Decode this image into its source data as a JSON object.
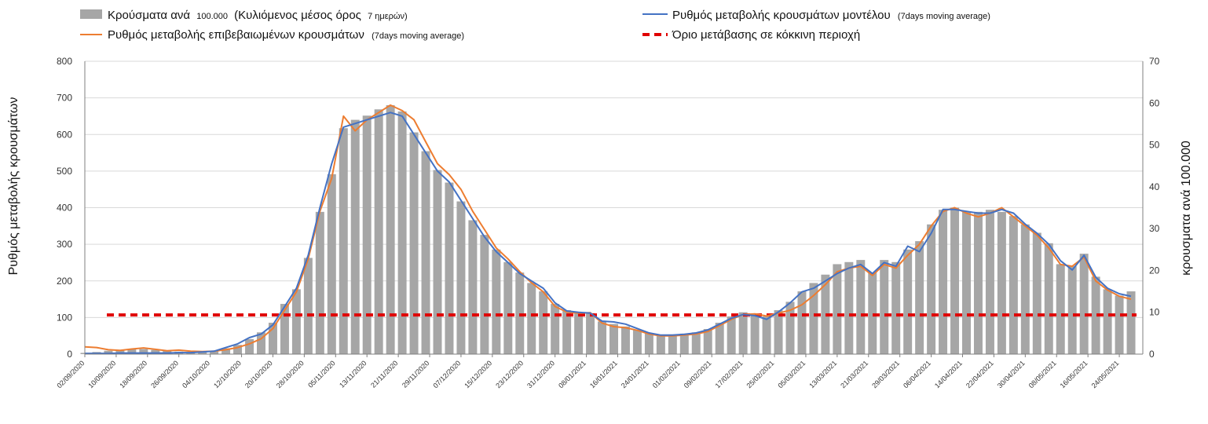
{
  "chart_data": {
    "type": "bar+line",
    "legend": {
      "bars_label": "Κρούσματα ανά",
      "bars_label_small": "100.000",
      "bars_label_rest": "(Κυλιόμενος μέσος όρος",
      "bars_label_small2": "7 ημερών)",
      "model_label": "Ρυθμός μεταβολής κρουσμάτων μοντέλου",
      "model_label_small": "(7days moving average)",
      "confirmed_label": "Ρυθμός μεταβολής επιβεβαιωμένων κρουσμάτων",
      "confirmed_label_small": "(7days moving average)",
      "threshold_label": "Όριο μετάβασης σε κόκκινη περιοχή"
    },
    "y_left": {
      "title": "Ρυθμός μεταβολής κρουσμάτων",
      "min": 0,
      "max": 800,
      "ticks": [
        "0",
        "100",
        "200",
        "300",
        "400",
        "500",
        "600",
        "700",
        "800"
      ]
    },
    "y_right": {
      "title": "κρουσματα ανά 100.000",
      "min": 0,
      "max": 70,
      "ticks": [
        "0",
        "10",
        "20",
        "30",
        "40",
        "50",
        "60",
        "70"
      ]
    },
    "x_tick_labels": [
      "02/09/2020",
      "10/09/2020",
      "18/09/2020",
      "26/09/2020",
      "04/10/2020",
      "12/10/2020",
      "20/10/2020",
      "28/10/2020",
      "05/11/2020",
      "13/11/2020",
      "21/11/2020",
      "29/11/2020",
      "07/12/2020",
      "15/12/2020",
      "23/12/2020",
      "31/12/2020",
      "08/01/2021",
      "16/01/2021",
      "24/01/2021",
      "01/02/2021",
      "09/02/2021",
      "17/02/2021",
      "25/02/2021",
      "05/03/2021",
      "13/03/2021",
      "21/03/2021",
      "29/03/2021",
      "06/04/2021",
      "14/04/2021",
      "22/04/2021",
      "30/04/2021",
      "08/05/2021",
      "16/05/2021",
      "24/05/2021"
    ],
    "threshold": 107,
    "series": [
      {
        "name": "Ρυθμός μεταβολής επιβεβαιωμένων κρουσμάτων (7days moving average)",
        "axis": "left",
        "color": "#ED7D31",
        "days": [
          0,
          3,
          6,
          9,
          12,
          15,
          18,
          21,
          24,
          27,
          30,
          33,
          36,
          39,
          42,
          45,
          48,
          51,
          54,
          57,
          60,
          63,
          66,
          69,
          72,
          75,
          78,
          81,
          84,
          87,
          90,
          93,
          96,
          99,
          102,
          105,
          108,
          111,
          114,
          117,
          120,
          123,
          126,
          129,
          132,
          135,
          138,
          141,
          144,
          147,
          150,
          153,
          156,
          159,
          162,
          165,
          168,
          171,
          174,
          177,
          180,
          183,
          186,
          189,
          192,
          195,
          198,
          201,
          204,
          207,
          210,
          213,
          216,
          219,
          222,
          225,
          228,
          231,
          234,
          237,
          240,
          243,
          246,
          249,
          252,
          255,
          258,
          261,
          264,
          267
        ],
        "values": [
          20,
          18,
          12,
          10,
          14,
          17,
          13,
          9,
          11,
          8,
          7,
          8,
          12,
          18,
          28,
          42,
          70,
          120,
          170,
          260,
          390,
          480,
          650,
          610,
          640,
          660,
          680,
          665,
          640,
          580,
          520,
          490,
          450,
          390,
          340,
          290,
          260,
          225,
          195,
          170,
          130,
          115,
          112,
          113,
          85,
          75,
          72,
          65,
          55,
          50,
          50,
          52,
          55,
          62,
          78,
          95,
          108,
          110,
          104,
          112,
          120,
          135,
          160,
          190,
          225,
          235,
          240,
          215,
          245,
          235,
          270,
          300,
          350,
          390,
          400,
          385,
          375,
          385,
          400,
          375,
          350,
          325,
          290,
          245,
          240,
          265,
          200,
          175,
          158,
          150
        ]
      },
      {
        "name": "Ρυθμός μεταβολής κρουσμάτων μοντέλου (7days moving average)",
        "axis": "left",
        "color": "#4472C4",
        "days": [
          0,
          3,
          6,
          9,
          12,
          15,
          18,
          21,
          24,
          27,
          30,
          33,
          36,
          39,
          42,
          45,
          48,
          51,
          54,
          57,
          60,
          63,
          66,
          69,
          72,
          75,
          78,
          81,
          84,
          87,
          90,
          93,
          96,
          99,
          102,
          105,
          108,
          111,
          114,
          117,
          120,
          123,
          126,
          129,
          132,
          135,
          138,
          141,
          144,
          147,
          150,
          153,
          156,
          159,
          162,
          165,
          168,
          171,
          174,
          177,
          180,
          183,
          186,
          189,
          192,
          195,
          198,
          201,
          204,
          207,
          210,
          213,
          216,
          219,
          222,
          225,
          228,
          231,
          234,
          237,
          240,
          243,
          246,
          249,
          252,
          255,
          258,
          261,
          264,
          267
        ],
        "values": [
          2,
          2,
          2,
          3,
          3,
          3,
          3,
          3,
          4,
          4,
          6,
          8,
          18,
          28,
          45,
          55,
          80,
          130,
          180,
          270,
          400,
          520,
          620,
          630,
          640,
          650,
          660,
          650,
          600,
          550,
          500,
          470,
          420,
          370,
          320,
          280,
          250,
          220,
          200,
          180,
          140,
          118,
          114,
          112,
          90,
          88,
          82,
          70,
          58,
          52,
          52,
          54,
          58,
          66,
          82,
          98,
          108,
          105,
          95,
          115,
          140,
          170,
          180,
          200,
          220,
          235,
          245,
          220,
          250,
          240,
          295,
          280,
          330,
          395,
          395,
          390,
          385,
          385,
          395,
          385,
          355,
          330,
          300,
          255,
          230,
          270,
          210,
          180,
          165,
          158
        ]
      },
      {
        "name": "Κρούσματα ανά 100.000 (Κυλιόμενος μέσος όρος 7 ημερών)",
        "axis": "right",
        "color": "#A6A6A6",
        "type": "bar",
        "days": [
          0,
          3,
          6,
          9,
          12,
          15,
          18,
          21,
          24,
          27,
          30,
          33,
          36,
          39,
          42,
          45,
          48,
          51,
          54,
          57,
          60,
          63,
          66,
          69,
          72,
          75,
          78,
          81,
          84,
          87,
          90,
          93,
          96,
          99,
          102,
          105,
          108,
          111,
          114,
          117,
          120,
          123,
          126,
          129,
          132,
          135,
          138,
          141,
          144,
          147,
          150,
          153,
          156,
          159,
          162,
          165,
          168,
          171,
          174,
          177,
          180,
          183,
          186,
          189,
          192,
          195,
          198,
          201,
          204,
          207,
          210,
          213,
          216,
          219,
          222,
          225,
          228,
          231,
          234,
          237,
          240,
          243,
          246,
          249,
          252,
          255,
          258,
          261,
          264,
          267
        ],
        "values": [
          0.3,
          0.5,
          0.8,
          1.0,
          1.2,
          1.2,
          1.0,
          0.8,
          0.6,
          0.5,
          0.6,
          0.8,
          1.4,
          2.2,
          3.6,
          5.2,
          7.5,
          12,
          15.5,
          23,
          34,
          43,
          54,
          56,
          57,
          58.5,
          59.5,
          58,
          53,
          48.5,
          44,
          41,
          36.5,
          32,
          28.5,
          25,
          22,
          19.5,
          17,
          15,
          12,
          10.5,
          10,
          9.8,
          7.8,
          7.2,
          6.6,
          5.8,
          5.0,
          4.6,
          4.7,
          4.9,
          5.2,
          6.0,
          7.5,
          9.0,
          10,
          9.6,
          9.0,
          10.5,
          12.5,
          15,
          17,
          19,
          21.5,
          22,
          22.5,
          19.5,
          22.5,
          22,
          25,
          27,
          31,
          34.5,
          35,
          34,
          34,
          34.5,
          34,
          33,
          31,
          29,
          26.5,
          21.5,
          21,
          24,
          18.5,
          15.5,
          14,
          15
        ]
      }
    ]
  }
}
